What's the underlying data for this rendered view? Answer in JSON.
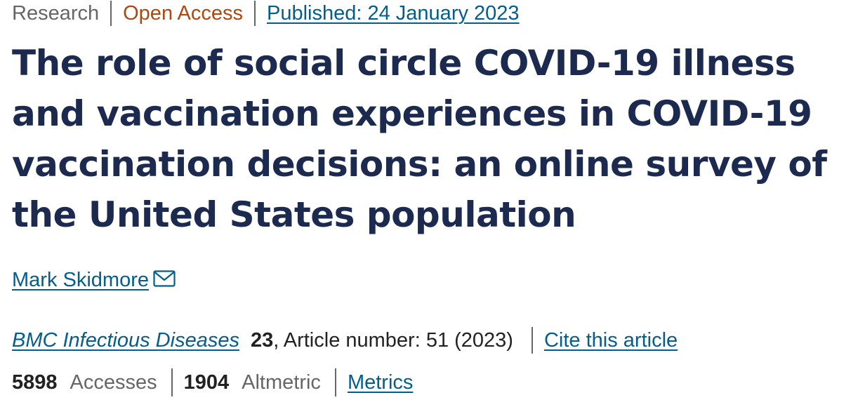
{
  "article_meta": {
    "type": "Research",
    "access": "Open Access",
    "published": "Published: 24 January 2023"
  },
  "title": "The role of social circle COVID-19 illness and vaccination experiences in COVID-19 vaccination decisions: an online survey of the United States population",
  "author": {
    "name": "Mark Skidmore",
    "icon": "mail-icon"
  },
  "citation": {
    "journal": "BMC Infectious Diseases",
    "volume": "23",
    "article_number": ", Article number: 51 (2023)",
    "cite_label": "Cite this article"
  },
  "metrics": {
    "accesses_value": "5898",
    "accesses_label": "Accesses",
    "altmetric_value": "1904",
    "altmetric_label": "Altmetric",
    "metrics_link": "Metrics"
  },
  "colors": {
    "title": "#1b2a4e",
    "link": "#025e8d",
    "open_access": "#b1470d",
    "muted": "#666666"
  }
}
